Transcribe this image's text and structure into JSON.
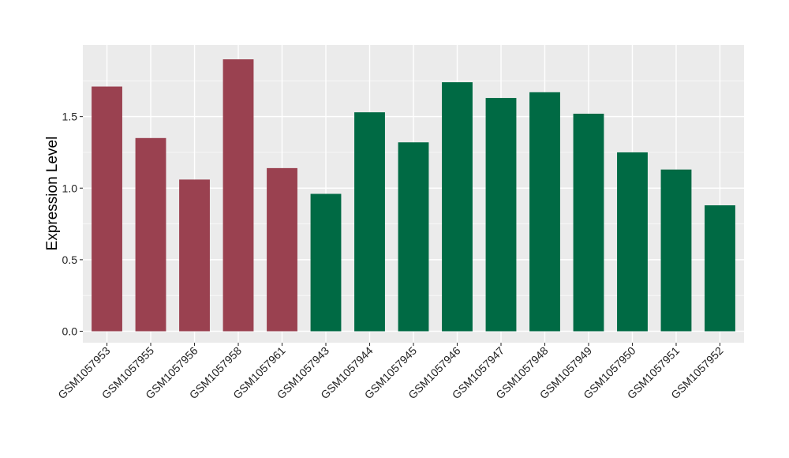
{
  "chart_data": {
    "type": "bar",
    "title": "",
    "xlabel": "",
    "ylabel": "Expression Level",
    "categories": [
      "GSM1057953",
      "GSM1057955",
      "GSM1057956",
      "GSM1057958",
      "GSM1057961",
      "GSM1057943",
      "GSM1057944",
      "GSM1057945",
      "GSM1057946",
      "GSM1057947",
      "GSM1057948",
      "GSM1057949",
      "GSM1057950",
      "GSM1057951",
      "GSM1057952"
    ],
    "values": [
      1.71,
      1.35,
      1.06,
      1.9,
      1.14,
      0.96,
      1.53,
      1.32,
      1.74,
      1.63,
      1.67,
      1.52,
      1.25,
      1.13,
      0.88
    ],
    "bar_colors": [
      "#9a4150",
      "#9a4150",
      "#9a4150",
      "#9a4150",
      "#9a4150",
      "#006a44",
      "#006a44",
      "#006a44",
      "#006a44",
      "#006a44",
      "#006a44",
      "#006a44",
      "#006a44",
      "#006a44",
      "#006a44"
    ],
    "ylim": [
      -0.08,
      2.0
    ],
    "yticks": [
      0.0,
      0.5,
      1.0,
      1.5
    ],
    "ytick_labels": [
      "0.0",
      "0.5",
      "1.0",
      "1.5"
    ],
    "grid": true,
    "legend": "none",
    "colors": {
      "panel": "#ebebeb",
      "grid": "#ffffff"
    }
  }
}
